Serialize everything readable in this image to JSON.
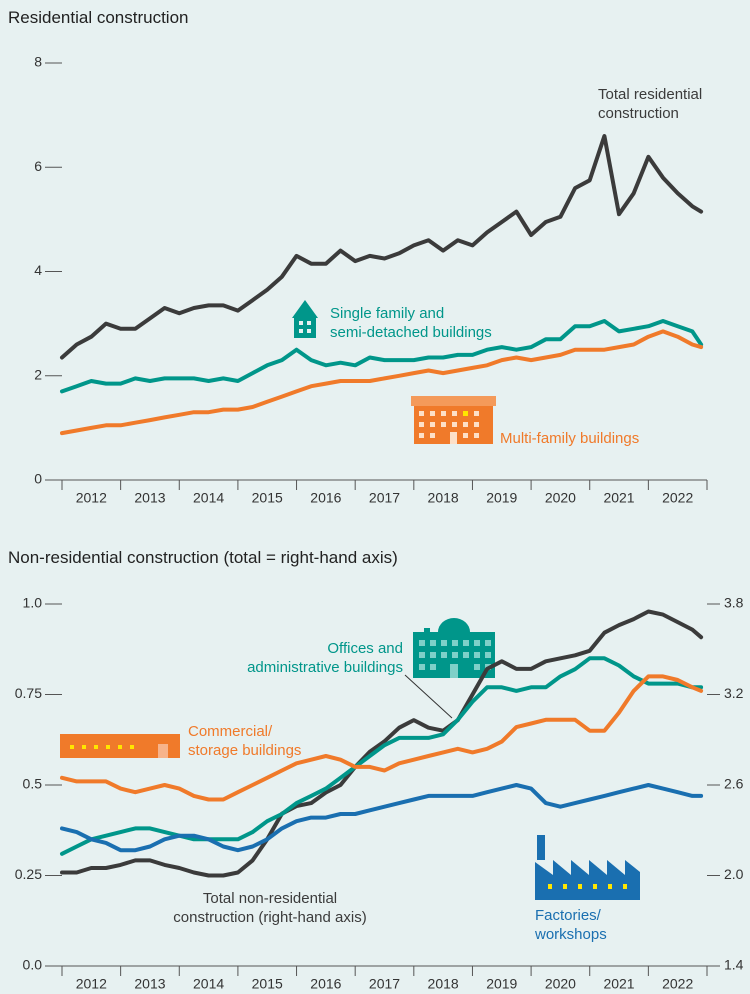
{
  "chart_data": [
    {
      "type": "line",
      "title": "Residential construction",
      "x": [
        2012,
        2012.25,
        2012.5,
        2012.75,
        2013,
        2013.25,
        2013.5,
        2013.75,
        2014,
        2014.25,
        2014.5,
        2014.75,
        2015,
        2015.25,
        2015.5,
        2015.75,
        2016,
        2016.25,
        2016.5,
        2016.75,
        2017,
        2017.25,
        2017.5,
        2017.75,
        2018,
        2018.25,
        2018.5,
        2018.75,
        2019,
        2019.25,
        2019.5,
        2019.75,
        2020,
        2020.25,
        2020.5,
        2020.75,
        2021,
        2021.25,
        2021.5,
        2021.75,
        2022,
        2022.25,
        2022.5,
        2022.75,
        2022.9
      ],
      "xlim": [
        2012,
        2023
      ],
      "xticks": [
        2012,
        2013,
        2014,
        2015,
        2016,
        2017,
        2018,
        2019,
        2020,
        2021,
        2022
      ],
      "ylim": [
        0,
        8
      ],
      "yticks": [
        0,
        2,
        4,
        6,
        8
      ],
      "series": [
        {
          "name": "Total residential\nconstruction",
          "color": "#3b3b3b",
          "values": [
            2.35,
            2.6,
            2.75,
            3.0,
            2.9,
            2.9,
            3.1,
            3.3,
            3.2,
            3.3,
            3.35,
            3.35,
            3.25,
            3.45,
            3.65,
            3.9,
            4.3,
            4.15,
            4.15,
            4.4,
            4.2,
            4.3,
            4.25,
            4.35,
            4.5,
            4.6,
            4.4,
            4.6,
            4.5,
            4.75,
            4.95,
            5.15,
            4.7,
            4.95,
            5.05,
            5.6,
            5.75,
            6.6,
            5.1,
            5.5,
            6.2,
            5.8,
            5.5,
            5.25,
            5.15
          ]
        },
        {
          "name": "Single family and\nsemi-detached buildings",
          "color": "#00968a",
          "values": [
            1.7,
            1.8,
            1.9,
            1.85,
            1.85,
            1.95,
            1.9,
            1.95,
            1.95,
            1.95,
            1.9,
            1.95,
            1.9,
            2.05,
            2.2,
            2.3,
            2.5,
            2.3,
            2.2,
            2.25,
            2.2,
            2.35,
            2.3,
            2.3,
            2.3,
            2.35,
            2.35,
            2.4,
            2.4,
            2.5,
            2.55,
            2.5,
            2.55,
            2.7,
            2.7,
            2.95,
            2.95,
            3.05,
            2.85,
            2.9,
            2.95,
            3.05,
            2.95,
            2.85,
            2.6
          ]
        },
        {
          "name": "Multi-family buildings",
          "color": "#f07a2a",
          "values": [
            0.9,
            0.95,
            1.0,
            1.05,
            1.05,
            1.1,
            1.15,
            1.2,
            1.25,
            1.3,
            1.3,
            1.35,
            1.35,
            1.4,
            1.5,
            1.6,
            1.7,
            1.8,
            1.85,
            1.9,
            1.9,
            1.9,
            1.95,
            2.0,
            2.05,
            2.1,
            2.05,
            2.1,
            2.15,
            2.2,
            2.3,
            2.35,
            2.3,
            2.35,
            2.4,
            2.5,
            2.5,
            2.5,
            2.55,
            2.6,
            2.75,
            2.85,
            2.75,
            2.6,
            2.55
          ]
        }
      ]
    },
    {
      "type": "line",
      "title": "Non-residential construction (total = right-hand axis)",
      "x": [
        2012,
        2012.25,
        2012.5,
        2012.75,
        2013,
        2013.25,
        2013.5,
        2013.75,
        2014,
        2014.25,
        2014.5,
        2014.75,
        2015,
        2015.25,
        2015.5,
        2015.75,
        2016,
        2016.25,
        2016.5,
        2016.75,
        2017,
        2017.25,
        2017.5,
        2017.75,
        2018,
        2018.25,
        2018.5,
        2018.75,
        2019,
        2019.25,
        2019.5,
        2019.75,
        2020,
        2020.25,
        2020.5,
        2020.75,
        2021,
        2021.25,
        2021.5,
        2021.75,
        2022,
        2022.25,
        2022.5,
        2022.75,
        2022.9
      ],
      "xlim": [
        2012,
        2023
      ],
      "xticks": [
        2012,
        2013,
        2014,
        2015,
        2016,
        2017,
        2018,
        2019,
        2020,
        2021,
        2022
      ],
      "ylim": [
        0,
        1
      ],
      "yticks": [
        {
          "value": 0,
          "label": "0.0"
        },
        0.25,
        0.5,
        0.75,
        {
          "value": 1,
          "label": "1.0"
        }
      ],
      "y2lim": [
        1.4,
        3.8
      ],
      "y2ticks": [
        1.4,
        {
          "value": 2,
          "label": "2.0"
        },
        2.6,
        3.2,
        3.8
      ],
      "series": [
        {
          "name": "Total non-residential\nconstruction (right-hand axis)",
          "color": "#3b3b3b",
          "axis": "y2",
          "values": [
            2.02,
            2.02,
            2.05,
            2.05,
            2.07,
            2.1,
            2.1,
            2.07,
            2.05,
            2.02,
            2.0,
            2.0,
            2.02,
            2.1,
            2.24,
            2.41,
            2.46,
            2.48,
            2.55,
            2.6,
            2.72,
            2.82,
            2.89,
            2.98,
            3.03,
            2.98,
            2.96,
            3.03,
            3.2,
            3.37,
            3.42,
            3.37,
            3.37,
            3.42,
            3.44,
            3.46,
            3.49,
            3.61,
            3.66,
            3.7,
            3.75,
            3.73,
            3.68,
            3.63,
            3.58
          ]
        },
        {
          "name": "Offices and\nadministrative buildings",
          "color": "#00968a",
          "values": [
            0.31,
            0.33,
            0.35,
            0.36,
            0.37,
            0.38,
            0.38,
            0.37,
            0.36,
            0.35,
            0.35,
            0.35,
            0.35,
            0.37,
            0.4,
            0.42,
            0.45,
            0.47,
            0.49,
            0.52,
            0.55,
            0.58,
            0.61,
            0.63,
            0.63,
            0.63,
            0.64,
            0.68,
            0.73,
            0.77,
            0.77,
            0.76,
            0.77,
            0.77,
            0.8,
            0.82,
            0.85,
            0.85,
            0.83,
            0.8,
            0.78,
            0.78,
            0.78,
            0.77,
            0.77
          ]
        },
        {
          "name": "Commercial/\nstorage buildings",
          "color": "#f07a2a",
          "values": [
            0.52,
            0.51,
            0.51,
            0.51,
            0.49,
            0.48,
            0.49,
            0.5,
            0.49,
            0.47,
            0.46,
            0.46,
            0.48,
            0.5,
            0.52,
            0.54,
            0.56,
            0.57,
            0.58,
            0.57,
            0.55,
            0.55,
            0.54,
            0.56,
            0.57,
            0.58,
            0.59,
            0.6,
            0.59,
            0.6,
            0.62,
            0.66,
            0.67,
            0.68,
            0.68,
            0.68,
            0.65,
            0.65,
            0.7,
            0.76,
            0.8,
            0.8,
            0.79,
            0.77,
            0.76
          ]
        },
        {
          "name": "Factories/\nworkshops",
          "color": "#1a6fb0",
          "values": [
            0.38,
            0.37,
            0.35,
            0.34,
            0.32,
            0.32,
            0.33,
            0.35,
            0.36,
            0.36,
            0.35,
            0.33,
            0.32,
            0.33,
            0.35,
            0.38,
            0.4,
            0.41,
            0.41,
            0.42,
            0.42,
            0.43,
            0.44,
            0.45,
            0.46,
            0.47,
            0.47,
            0.47,
            0.47,
            0.48,
            0.49,
            0.5,
            0.49,
            0.45,
            0.44,
            0.45,
            0.46,
            0.47,
            0.48,
            0.49,
            0.5,
            0.49,
            0.48,
            0.47,
            0.47
          ]
        }
      ]
    }
  ]
}
